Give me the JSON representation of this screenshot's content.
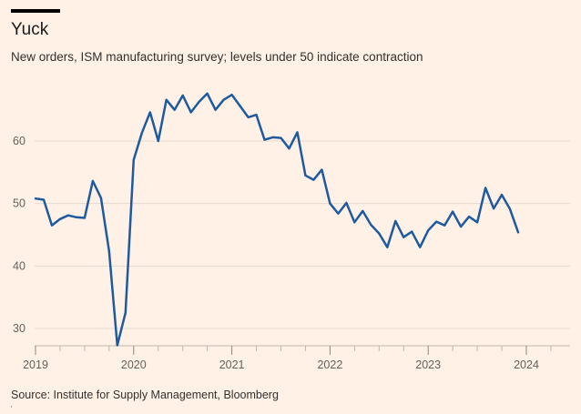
{
  "header": {
    "title": "Yuck",
    "subtitle": "New orders, ISM manufacturing survey; levels under 50 indicate contraction"
  },
  "footer": {
    "source": "Source: Institute for Supply Management, Bloomberg"
  },
  "colors": {
    "background": "#fff1e5",
    "line": "#1e5aa0",
    "grid": "#e6d9ce",
    "text": "#66605c"
  },
  "chart_data": {
    "type": "line",
    "title": "Yuck",
    "subtitle": "New orders, ISM manufacturing survey; levels under 50 indicate contraction",
    "xlabel": "",
    "ylabel": "",
    "ylim": [
      27,
      69
    ],
    "yticks": [
      30,
      40,
      50,
      60
    ],
    "xticks": [
      "2019",
      "2020",
      "2021",
      "2022",
      "2023",
      "2024"
    ],
    "grid": true,
    "legend": "none",
    "series": [
      {
        "frequency": "monthly",
        "start": "2019-01",
        "values": [
          50.8,
          50.6,
          46.5,
          47.5,
          48.1,
          47.8,
          47.7,
          53.6,
          50.9,
          42.4,
          27.3,
          32.5,
          57.0,
          61.3,
          64.6,
          60.0,
          66.6,
          65.0,
          67.3,
          64.6,
          66.3,
          67.6,
          65.0,
          66.6,
          67.4,
          65.6,
          63.8,
          64.2,
          60.2,
          60.6,
          60.5,
          58.8,
          61.4,
          54.5,
          53.8,
          55.4,
          50.0,
          48.4,
          50.1,
          47.0,
          48.8,
          46.6,
          45.2,
          43.0,
          47.2,
          44.6,
          45.5,
          43.0,
          45.7,
          47.1,
          46.5,
          48.7,
          46.3,
          47.9,
          47.0,
          52.5,
          49.2,
          51.4,
          49.1,
          45.4
        ]
      }
    ]
  }
}
